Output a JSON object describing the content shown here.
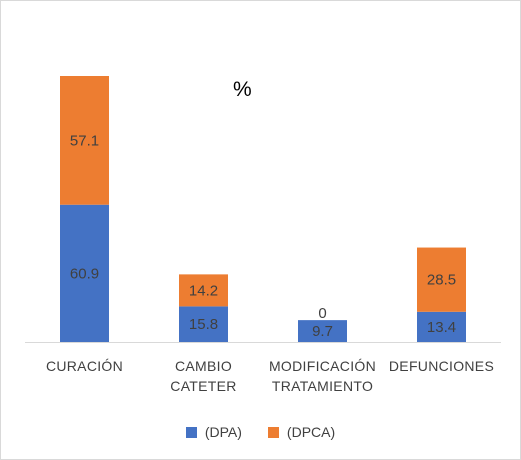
{
  "chart_data": {
    "type": "bar",
    "stacked": true,
    "title": "%",
    "categories": [
      [
        "CURACIÓN"
      ],
      [
        "CAMBIO",
        "CATETER"
      ],
      [
        "MODIFICACIÓN",
        "TRATAMIENTO"
      ],
      [
        "DEFUNCIONES"
      ]
    ],
    "series": [
      {
        "name": "(DPA)",
        "values": [
          60.9,
          15.8,
          9.7,
          13.4
        ],
        "color": "#4472c4"
      },
      {
        "name": "(DPCA)",
        "values": [
          57.1,
          14.2,
          0,
          28.5
        ],
        "color": "#ed7d31"
      }
    ],
    "data_labels": [
      [
        "60.9",
        "15.8",
        "9.7",
        "13.4"
      ],
      [
        "57.1",
        "14.2",
        "0",
        "28.5"
      ]
    ],
    "ylim": [
      0,
      118
    ],
    "grid": false,
    "legend_position": "bottom",
    "axis_color": "#d9d9d9"
  }
}
